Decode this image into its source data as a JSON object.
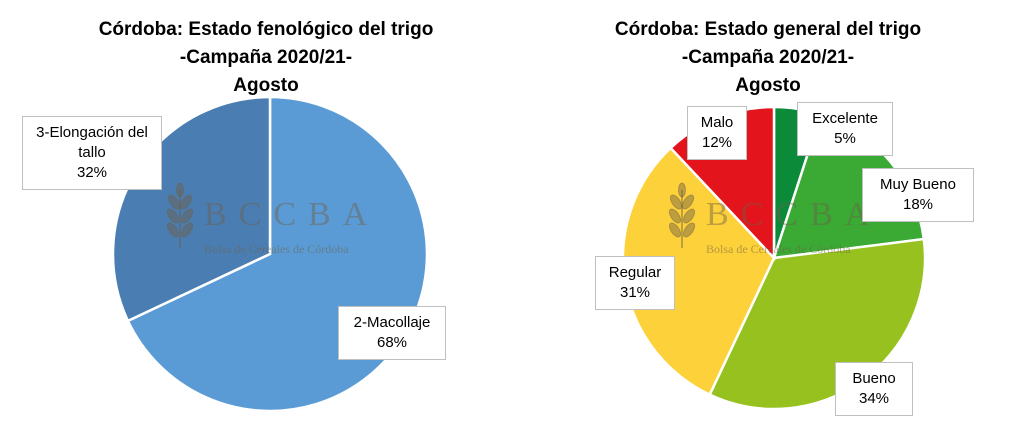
{
  "watermark": {
    "logo": "BCCBA",
    "subtitle": "Bolsa de Cereales de Córdoba",
    "wheat_icon": "wheat-icon"
  },
  "chart_data": [
    {
      "type": "pie",
      "title_lines": [
        "Córdoba: Estado fenológico del trigo",
        "-Campaña 2020/21-",
        "Agosto"
      ],
      "slices": [
        {
          "label_lines": [
            "2-Macollaje"
          ],
          "value": 68,
          "pct_text": "68%",
          "color": "#5b9bd5"
        },
        {
          "label_lines": [
            "3-Elongación del",
            "tallo"
          ],
          "value": 32,
          "pct_text": "32%",
          "color": "#4a7eb2"
        }
      ]
    },
    {
      "type": "pie",
      "title_lines": [
        "Córdoba: Estado general del trigo",
        "-Campaña 2020/21-",
        "Agosto"
      ],
      "slices": [
        {
          "label_lines": [
            "Excelente"
          ],
          "value": 5,
          "pct_text": "5%",
          "color": "#0b8a3a"
        },
        {
          "label_lines": [
            "Muy Bueno"
          ],
          "value": 18,
          "pct_text": "18%",
          "color": "#3aaa35"
        },
        {
          "label_lines": [
            "Bueno"
          ],
          "value": 34,
          "pct_text": "34%",
          "color": "#96c11f"
        },
        {
          "label_lines": [
            "Regular"
          ],
          "value": 31,
          "pct_text": "31%",
          "color": "#fdd13a"
        },
        {
          "label_lines": [
            "Malo"
          ],
          "value": 12,
          "pct_text": "12%",
          "color": "#e3141b"
        }
      ]
    }
  ]
}
